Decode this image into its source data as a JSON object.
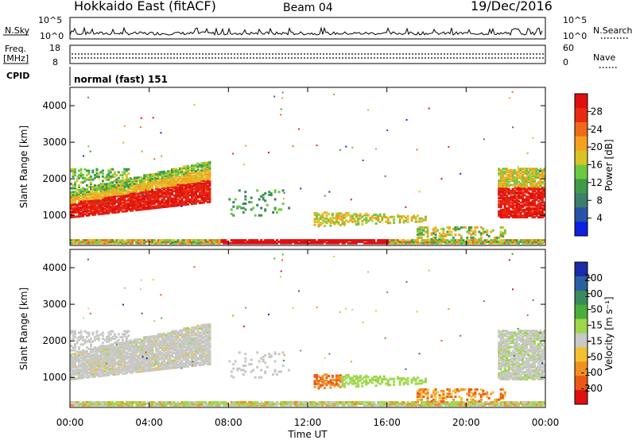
{
  "header": {
    "title": "Hokkaido East (fitACF)",
    "beam": "Beam 04",
    "date": "19/Dec/2016"
  },
  "sky_panel": {
    "left_label": "N.Sky",
    "right_label": "N.Search",
    "left_ticks": [
      "10^5",
      "10^0"
    ],
    "right_ticks": [
      "10^5",
      "10^0"
    ]
  },
  "freq_panel": {
    "label_line1": "Freq.",
    "label_line2": "[MHz]",
    "left_ticks": [
      "18",
      "8"
    ],
    "right_label": "Nave",
    "right_ticks": [
      "60",
      "0"
    ],
    "cpid_label": "CPID",
    "cpid_value": "normal (fast) 151"
  },
  "chart_data": [
    {
      "type": "heatmap",
      "name": "power",
      "ylabel": "Slant Range [km]",
      "yticks": [
        "1000",
        "2000",
        "3000",
        "4000"
      ],
      "ylim": [
        180,
        4500
      ],
      "colorbar_label": "Power [dB]",
      "colorbar_ticks": [
        "4",
        "8",
        "12",
        "16",
        "20",
        "24",
        "28"
      ],
      "colorbar_colors": [
        "#1020e0",
        "#2a52a8",
        "#3d7e6c",
        "#3f9a4a",
        "#6ec842",
        "#d8c428",
        "#f5a020",
        "#ef6a18",
        "#e82a10",
        "#e01010"
      ],
      "xticks": [
        "00:00",
        "04:00",
        "08:00",
        "12:00",
        "16:00",
        "20:00",
        "00:00"
      ]
    },
    {
      "type": "heatmap",
      "name": "velocity",
      "ylabel": "Slant Range [km]",
      "yticks": [
        "1000",
        "2000",
        "3000",
        "4000"
      ],
      "ylim": [
        180,
        4500
      ],
      "colorbar_label": "Velocity [m s⁻¹]",
      "colorbar_ticks": [
        "200",
        "100",
        "50",
        "15",
        "-15",
        "-50",
        "-100",
        "-200"
      ],
      "colorbar_colors": [
        "#1a2aa8",
        "#2a60a0",
        "#3b8a5e",
        "#4cae3a",
        "#9ed84a",
        "#c8c8c4",
        "#f5c030",
        "#f09020",
        "#ea5a14",
        "#e01010"
      ],
      "xticks": [
        "00:00",
        "04:00",
        "08:00",
        "12:00",
        "16:00",
        "20:00",
        "00:00"
      ],
      "xlabel": "Time UT"
    }
  ]
}
